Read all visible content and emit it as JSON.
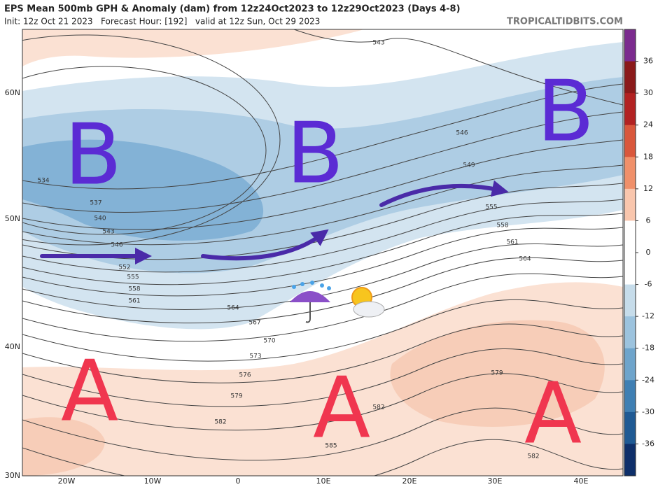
{
  "header": {
    "title": "EPS Mean 500mb GPH & Anomaly (dam) from 12z24Oct2023 to 12z29Oct2023 (Days 4-8)",
    "subtitle": "Init: 12z Oct 21 2023   Forecast Hour: [192]   valid at 12z Sun, Oct 29 2023",
    "source": "TROPICALTIDBITS.COM"
  },
  "map": {
    "lat_labels": [
      "60N",
      "50N",
      "40N",
      "30N"
    ],
    "lon_labels": [
      "20W",
      "10W",
      "0",
      "10E",
      "20E",
      "30E",
      "40E"
    ],
    "contour_labels": [
      "534",
      "537",
      "540",
      "543",
      "546",
      "552",
      "555",
      "558",
      "561",
      "564",
      "567",
      "570",
      "573",
      "576",
      "579",
      "582",
      "585",
      "582",
      "579",
      "582",
      "543",
      "546",
      "549",
      "555",
      "558",
      "561",
      "564"
    ],
    "annotations": [
      "B",
      "B",
      "B",
      "A",
      "A",
      "A"
    ]
  },
  "colorbar": {
    "ticks": [
      "36",
      "30",
      "24",
      "18",
      "12",
      "6",
      "0",
      "-6",
      "-12",
      "-18",
      "-24",
      "-30",
      "-36"
    ]
  }
}
